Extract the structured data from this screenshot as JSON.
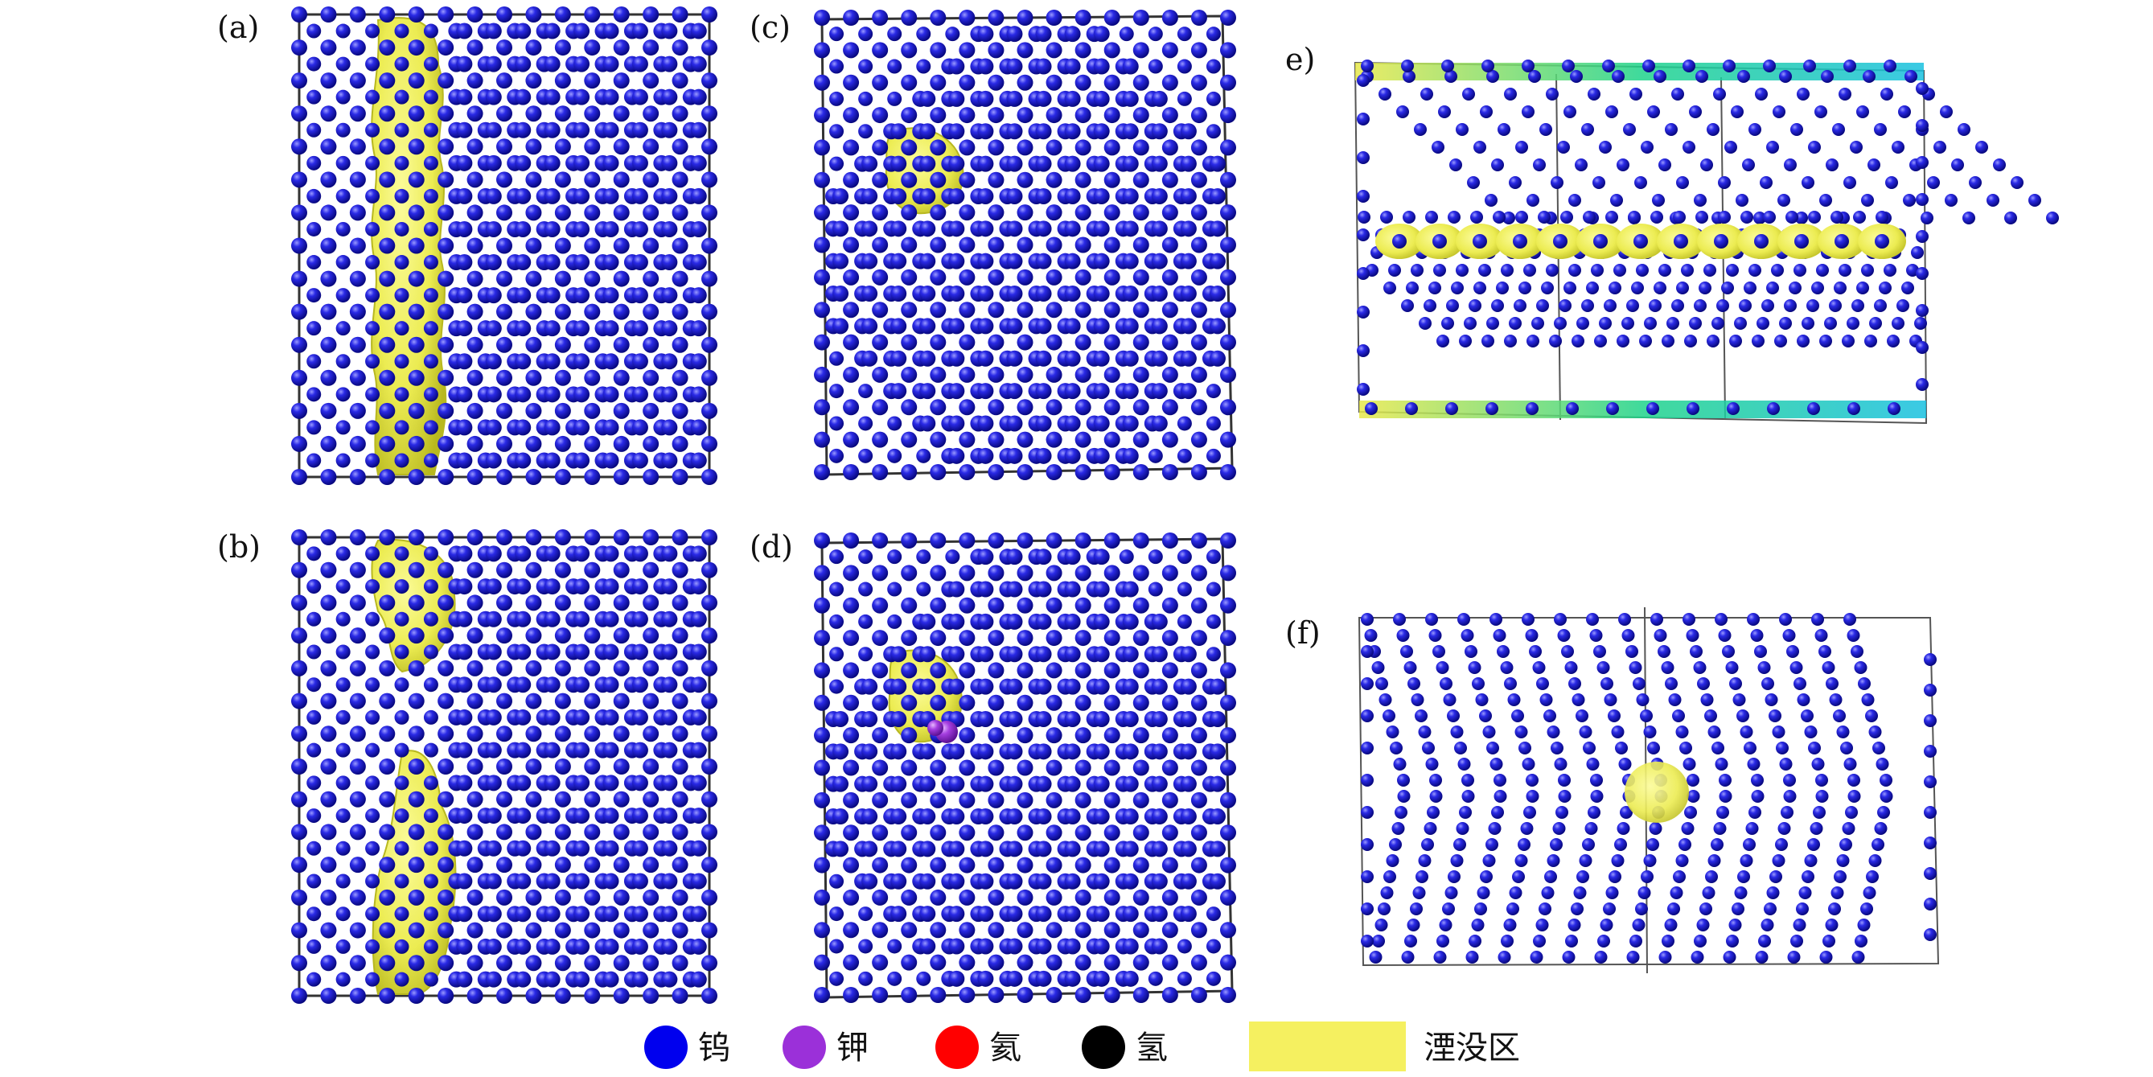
{
  "panels": [
    {
      "id": "a",
      "label": "(a)"
    },
    {
      "id": "b",
      "label": "(b)"
    },
    {
      "id": "c",
      "label": "(c)"
    },
    {
      "id": "d",
      "label": "(d)"
    },
    {
      "id": "e",
      "label": "e)"
    },
    {
      "id": "f",
      "label": "(f)"
    }
  ],
  "legend": {
    "tungsten": {
      "label": "钨",
      "color": "#0000ee"
    },
    "potassium": {
      "label": "钾",
      "color": "#9b30d9"
    },
    "helium": {
      "label": "氦",
      "color": "#ff0000"
    },
    "hydrogen": {
      "label": "氢",
      "color": "#000000"
    },
    "cascade": {
      "label": "湮没区",
      "color": "#f5f060"
    }
  },
  "colors": {
    "atom_dark": "#0a0a8a",
    "atom_mid": "#1a1ad0",
    "atom_light": "#8080ff",
    "void": "#e9e94a",
    "void_edge": "#c8c820",
    "surface_green": "#1fd38a",
    "surface_cyan": "#18c0e0",
    "box_line": "#333333"
  }
}
